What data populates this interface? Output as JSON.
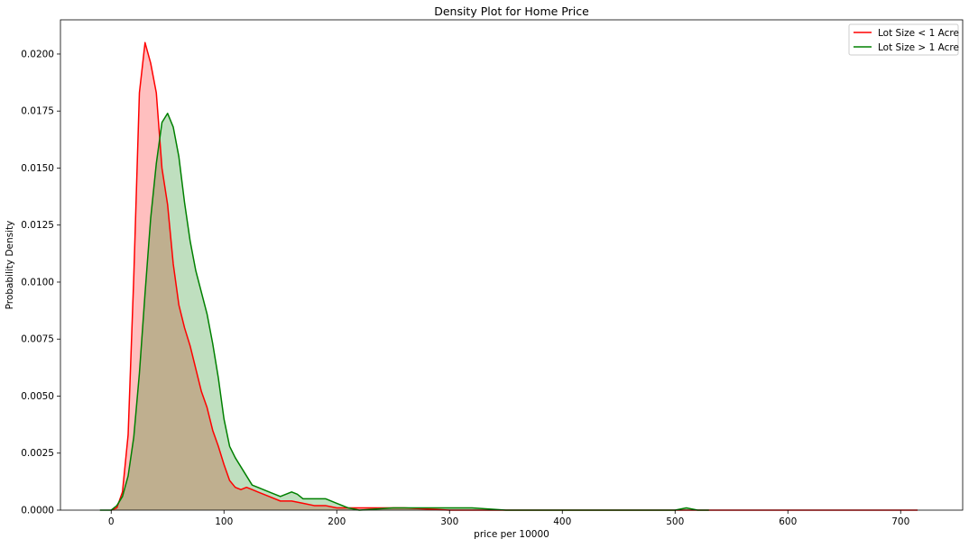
{
  "chart_data": {
    "type": "area",
    "title": "Density Plot for Home Price",
    "xlabel": "price per 10000",
    "ylabel": "Probability Density",
    "xlim": [
      -45,
      755
    ],
    "ylim": [
      0,
      0.0215
    ],
    "x_ticks": [
      0,
      100,
      200,
      300,
      400,
      500,
      600,
      700
    ],
    "x_tick_labels": [
      "0",
      "100",
      "200",
      "300",
      "400",
      "500",
      "600",
      "700"
    ],
    "y_ticks": [
      0,
      0.0025,
      0.005,
      0.0075,
      0.01,
      0.0125,
      0.015,
      0.0175,
      0.02
    ],
    "y_tick_labels": [
      "0.0000",
      "0.0025",
      "0.0050",
      "0.0075",
      "0.0100",
      "0.0125",
      "0.0150",
      "0.0175",
      "0.0200"
    ],
    "grid": false,
    "legend_position": "top-right",
    "series": [
      {
        "name": "Lot Size < 1 Acre",
        "color": "#ff0000",
        "fill_color": "#ff0000",
        "points": [
          [
            0,
            0.0
          ],
          [
            5,
            0.0001
          ],
          [
            10,
            0.0008
          ],
          [
            15,
            0.0033
          ],
          [
            20,
            0.0102
          ],
          [
            25,
            0.0183
          ],
          [
            30,
            0.0205
          ],
          [
            35,
            0.0196
          ],
          [
            40,
            0.0183
          ],
          [
            45,
            0.015
          ],
          [
            50,
            0.0134
          ],
          [
            55,
            0.0108
          ],
          [
            60,
            0.009
          ],
          [
            65,
            0.008
          ],
          [
            70,
            0.0072
          ],
          [
            80,
            0.0052
          ],
          [
            85,
            0.0045
          ],
          [
            90,
            0.0035
          ],
          [
            95,
            0.0028
          ],
          [
            100,
            0.002
          ],
          [
            105,
            0.0013
          ],
          [
            110,
            0.001
          ],
          [
            115,
            0.0009
          ],
          [
            120,
            0.001
          ],
          [
            125,
            0.0009
          ],
          [
            130,
            0.0008
          ],
          [
            140,
            0.0006
          ],
          [
            150,
            0.0004
          ],
          [
            160,
            0.0004
          ],
          [
            170,
            0.0003
          ],
          [
            180,
            0.0002
          ],
          [
            190,
            0.0002
          ],
          [
            200,
            0.0001
          ],
          [
            210,
            0.0001
          ],
          [
            220,
            0.0001
          ],
          [
            240,
            0.0001
          ],
          [
            260,
            0.0001
          ],
          [
            300,
            0.0
          ],
          [
            400,
            0.0
          ],
          [
            500,
            0.0
          ],
          [
            600,
            0.0
          ],
          [
            700,
            0.0
          ],
          [
            715,
            0.0
          ]
        ]
      },
      {
        "name": "Lot Size > 1 Acre",
        "color": "#008000",
        "fill_color": "#008000",
        "points": [
          [
            -10,
            0.0
          ],
          [
            0,
            0.0
          ],
          [
            5,
            0.0002
          ],
          [
            10,
            0.0006
          ],
          [
            15,
            0.0015
          ],
          [
            20,
            0.0032
          ],
          [
            25,
            0.006
          ],
          [
            30,
            0.0095
          ],
          [
            35,
            0.0128
          ],
          [
            40,
            0.0152
          ],
          [
            45,
            0.017
          ],
          [
            50,
            0.0174
          ],
          [
            55,
            0.0168
          ],
          [
            60,
            0.0155
          ],
          [
            65,
            0.0135
          ],
          [
            70,
            0.0118
          ],
          [
            75,
            0.0105
          ],
          [
            85,
            0.0086
          ],
          [
            90,
            0.0073
          ],
          [
            95,
            0.0058
          ],
          [
            100,
            0.004
          ],
          [
            105,
            0.0028
          ],
          [
            110,
            0.0023
          ],
          [
            115,
            0.0019
          ],
          [
            120,
            0.0015
          ],
          [
            125,
            0.0011
          ],
          [
            130,
            0.001
          ],
          [
            140,
            0.0008
          ],
          [
            150,
            0.0006
          ],
          [
            155,
            0.0007
          ],
          [
            160,
            0.0008
          ],
          [
            165,
            0.0007
          ],
          [
            170,
            0.0005
          ],
          [
            180,
            0.0005
          ],
          [
            190,
            0.0005
          ],
          [
            200,
            0.0003
          ],
          [
            210,
            0.0001
          ],
          [
            220,
            0.0
          ],
          [
            250,
            0.0001
          ],
          [
            280,
            0.0001
          ],
          [
            300,
            0.0001
          ],
          [
            320,
            0.0001
          ],
          [
            350,
            0.0
          ],
          [
            400,
            0.0
          ],
          [
            450,
            0.0
          ],
          [
            500,
            0.0
          ],
          [
            510,
            0.0001
          ],
          [
            520,
            0.0
          ],
          [
            530,
            0.0
          ]
        ]
      }
    ]
  }
}
